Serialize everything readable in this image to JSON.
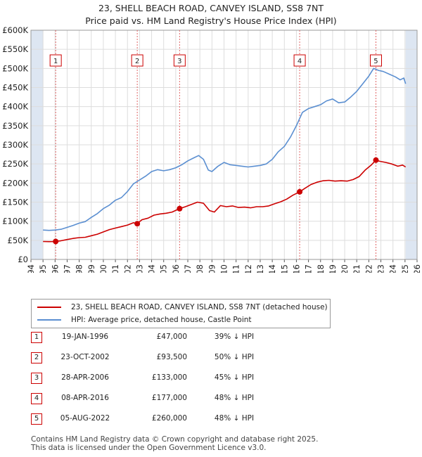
{
  "title": {
    "line1": "23, SHELL BEACH ROAD, CANVEY ISLAND, SS8 7NT",
    "line2": "Price paid vs. HM Land Registry's House Price Index (HPI)"
  },
  "colors": {
    "property": "#cc0000",
    "hpi": "#5b8fd1",
    "shade": "#dde6f2",
    "grid": "#dddddd",
    "marker_border": "#cc0000",
    "vline": "#e06666"
  },
  "chart_data": {
    "type": "line",
    "title": "Price paid vs. HM Land Registry's House Price Index (HPI)",
    "xlabel": "",
    "ylabel": "",
    "xlim": [
      1994,
      2026
    ],
    "ylim": [
      0,
      600000
    ],
    "y_ticks": [
      {
        "v": 0,
        "label": "£0"
      },
      {
        "v": 50000,
        "label": "£50K"
      },
      {
        "v": 100000,
        "label": "£100K"
      },
      {
        "v": 150000,
        "label": "£150K"
      },
      {
        "v": 200000,
        "label": "£200K"
      },
      {
        "v": 250000,
        "label": "£250K"
      },
      {
        "v": 300000,
        "label": "£300K"
      },
      {
        "v": 350000,
        "label": "£350K"
      },
      {
        "v": 400000,
        "label": "£400K"
      },
      {
        "v": 450000,
        "label": "£450K"
      },
      {
        "v": 500000,
        "label": "£500K"
      },
      {
        "v": 550000,
        "label": "£550K"
      },
      {
        "v": 600000,
        "label": "£600K"
      }
    ],
    "x_ticks": [
      "1994",
      "1995",
      "1996",
      "1997",
      "1998",
      "1999",
      "2000",
      "2001",
      "2002",
      "2003",
      "2004",
      "2005",
      "2006",
      "2007",
      "2008",
      "2009",
      "2010",
      "2011",
      "2012",
      "2013",
      "2014",
      "2015",
      "2016",
      "2017",
      "2018",
      "2019",
      "2020",
      "2021",
      "2022",
      "2023",
      "2024",
      "2025",
      "2026"
    ],
    "shaded_before": 1995.0,
    "shaded_after": 2025.05,
    "series": [
      {
        "name": "23, SHELL BEACH ROAD, CANVEY ISLAND, SS8 7NT (detached house)",
        "color": "#cc0000",
        "x": [
          1995.0,
          1995.5,
          1996.05,
          1996.5,
          1997.0,
          1997.5,
          1998.0,
          1998.5,
          1999.0,
          1999.5,
          2000.0,
          2000.5,
          2001.0,
          2001.5,
          2002.0,
          2002.5,
          2002.81,
          2003.2,
          2003.7,
          2004.2,
          2004.7,
          2005.2,
          2005.7,
          2006.32,
          2006.8,
          2007.3,
          2007.8,
          2008.3,
          2008.8,
          2009.2,
          2009.7,
          2010.2,
          2010.7,
          2011.2,
          2011.7,
          2012.2,
          2012.7,
          2013.2,
          2013.7,
          2014.2,
          2014.7,
          2015.2,
          2015.7,
          2016.27,
          2016.7,
          2017.2,
          2017.7,
          2018.2,
          2018.7,
          2019.2,
          2019.7,
          2020.2,
          2020.7,
          2021.2,
          2021.7,
          2022.2,
          2022.59,
          2022.9,
          2023.4,
          2023.9,
          2024.4,
          2024.8,
          2025.05
        ],
        "values": [
          47000,
          46500,
          47000,
          49000,
          52000,
          55000,
          57000,
          58000,
          62000,
          66000,
          72000,
          78000,
          82000,
          86000,
          90000,
          96000,
          93500,
          104000,
          108000,
          116000,
          119000,
          121000,
          124000,
          133000,
          138000,
          144000,
          150000,
          147000,
          128000,
          124000,
          141000,
          138000,
          140000,
          136000,
          137000,
          135000,
          138000,
          138000,
          140000,
          146000,
          151000,
          158000,
          168000,
          177000,
          186000,
          196000,
          202000,
          206000,
          207000,
          205000,
          206000,
          205000,
          209000,
          217000,
          234000,
          247000,
          260000,
          257000,
          254000,
          250000,
          244000,
          247000,
          242000
        ]
      },
      {
        "name": "HPI: Average price, detached house, Castle Point",
        "color": "#5b8fd1",
        "x": [
          1995.0,
          1995.5,
          1996.0,
          1996.5,
          1997.0,
          1997.5,
          1998.0,
          1998.5,
          1999.0,
          1999.5,
          2000.0,
          2000.5,
          2001.0,
          2001.5,
          2002.0,
          2002.5,
          2003.0,
          2003.5,
          2004.0,
          2004.5,
          2005.0,
          2005.5,
          2006.0,
          2006.5,
          2007.0,
          2007.5,
          2007.9,
          2008.3,
          2008.7,
          2009.0,
          2009.5,
          2010.0,
          2010.5,
          2011.0,
          2011.5,
          2012.0,
          2012.5,
          2013.0,
          2013.5,
          2014.0,
          2014.5,
          2015.0,
          2015.5,
          2016.0,
          2016.5,
          2017.0,
          2017.5,
          2018.0,
          2018.5,
          2019.0,
          2019.5,
          2020.0,
          2020.5,
          2021.0,
          2021.5,
          2022.0,
          2022.4,
          2022.8,
          2023.2,
          2023.7,
          2024.2,
          2024.6,
          2024.9,
          2025.05
        ],
        "values": [
          77000,
          76000,
          77000,
          79000,
          84000,
          89000,
          95000,
          99000,
          110000,
          120000,
          133000,
          142000,
          155000,
          162000,
          178000,
          198000,
          208000,
          218000,
          230000,
          235000,
          232000,
          235000,
          240000,
          248000,
          258000,
          266000,
          272000,
          262000,
          234000,
          230000,
          244000,
          254000,
          248000,
          246000,
          244000,
          242000,
          244000,
          246000,
          250000,
          262000,
          282000,
          296000,
          320000,
          350000,
          385000,
          395000,
          400000,
          405000,
          415000,
          420000,
          410000,
          412000,
          425000,
          440000,
          460000,
          480000,
          500000,
          495000,
          492000,
          485000,
          478000,
          470000,
          475000,
          460000
        ]
      }
    ],
    "sales": [
      {
        "n": "1",
        "x": 1996.05,
        "value": 47000
      },
      {
        "n": "2",
        "x": 2002.81,
        "value": 93500
      },
      {
        "n": "3",
        "x": 2006.32,
        "value": 133000
      },
      {
        "n": "4",
        "x": 2016.27,
        "value": 177000
      },
      {
        "n": "5",
        "x": 2022.59,
        "value": 260000
      }
    ]
  },
  "legend": {
    "property": "23, SHELL BEACH ROAD, CANVEY ISLAND, SS8 7NT (detached house)",
    "hpi": "HPI: Average price, detached house, Castle Point"
  },
  "sales_table": [
    {
      "n": "1",
      "date": "19-JAN-1996",
      "price": "£47,000",
      "hpi": "39% ↓ HPI"
    },
    {
      "n": "2",
      "date": "23-OCT-2002",
      "price": "£93,500",
      "hpi": "50% ↓ HPI"
    },
    {
      "n": "3",
      "date": "28-APR-2006",
      "price": "£133,000",
      "hpi": "45% ↓ HPI"
    },
    {
      "n": "4",
      "date": "08-APR-2016",
      "price": "£177,000",
      "hpi": "48% ↓ HPI"
    },
    {
      "n": "5",
      "date": "05-AUG-2022",
      "price": "£260,000",
      "hpi": "48% ↓ HPI"
    }
  ],
  "footer": {
    "line1": "Contains HM Land Registry data © Crown copyright and database right 2025.",
    "line2": "This data is licensed under the Open Government Licence v3.0."
  }
}
